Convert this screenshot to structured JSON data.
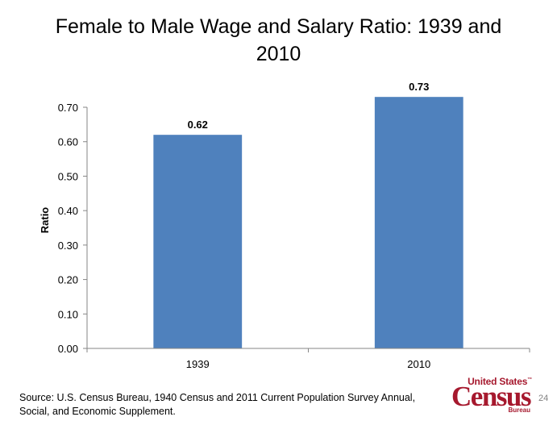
{
  "slide": {
    "title": "Female to Male Wage and Salary Ratio: 1939 and 2010",
    "source": "Source: U.S. Census Bureau, 1940 Census and 2011 Current Population Survey Annual, Social, and Economic Supplement.",
    "page_number": "24",
    "logo": {
      "top": "United States",
      "trademark": "™",
      "main": "Census",
      "bottom": "Bureau"
    }
  },
  "colors": {
    "bar": "#4f81bd",
    "logo": "#a6192e"
  },
  "chart_data": {
    "type": "bar",
    "title": "Female to Male Wage and Salary Ratio: 1939 and 2010",
    "xlabel": "",
    "ylabel": "Ratio",
    "categories": [
      "1939",
      "2010"
    ],
    "values": [
      0.62,
      0.73
    ],
    "data_labels": [
      "0.62",
      "0.73"
    ],
    "ylim": [
      0,
      0.7
    ],
    "yticks": [
      "0.00",
      "0.10",
      "0.20",
      "0.30",
      "0.40",
      "0.50",
      "0.60",
      "0.70"
    ],
    "grid": false,
    "legend": "none"
  }
}
